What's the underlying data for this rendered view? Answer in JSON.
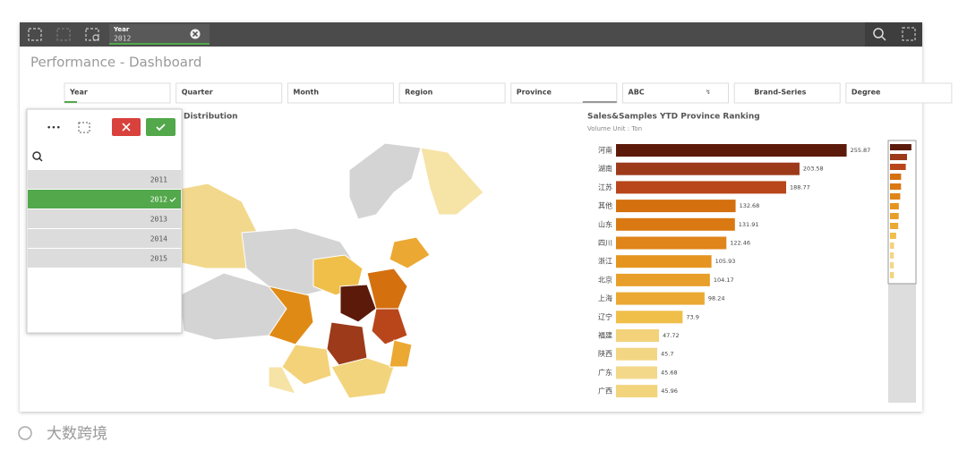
{
  "toolbar": {
    "selection": {
      "field": "Year",
      "value": "2012"
    }
  },
  "header": {
    "title": "Performance - Dashboard"
  },
  "filters": [
    "Year",
    "Quarter",
    "Month",
    "Region",
    "Province",
    "ABC",
    "Brand-Series",
    "Degree"
  ],
  "dropdown": {
    "items": [
      {
        "label": "2011",
        "selected": false
      },
      {
        "label": "2012",
        "selected": true
      },
      {
        "label": "2013",
        "selected": false
      },
      {
        "label": "2014",
        "selected": false
      },
      {
        "label": "2015",
        "selected": false
      }
    ]
  },
  "map": {
    "title": "Distribution"
  },
  "chart_data": {
    "type": "bar",
    "orientation": "horizontal",
    "title": "Sales&Samples YTD Province Ranking",
    "subtitle": "Volume Unit : Ton",
    "categories": [
      "河南",
      "湖南",
      "江苏",
      "其他",
      "山东",
      "四川",
      "浙江",
      "北京",
      "上海",
      "辽宁",
      "福建",
      "陕西",
      "广东",
      "广西"
    ],
    "values": [
      255.87,
      203.58,
      188.77,
      132.68,
      131.91,
      122.46,
      105.93,
      104.17,
      98.24,
      73.9,
      47.72,
      45.7,
      45.68,
      45.96
    ],
    "colors": [
      "#5c1a0b",
      "#9c3a1a",
      "#b8461a",
      "#d5700f",
      "#da7812",
      "#df8519",
      "#e5951f",
      "#e89f29",
      "#eba833",
      "#efbf4a",
      "#f3d27a",
      "#f3d684",
      "#f3d88a",
      "#f2d47c"
    ],
    "xlim": [
      0,
      300
    ]
  },
  "watermark": "大数跨境"
}
